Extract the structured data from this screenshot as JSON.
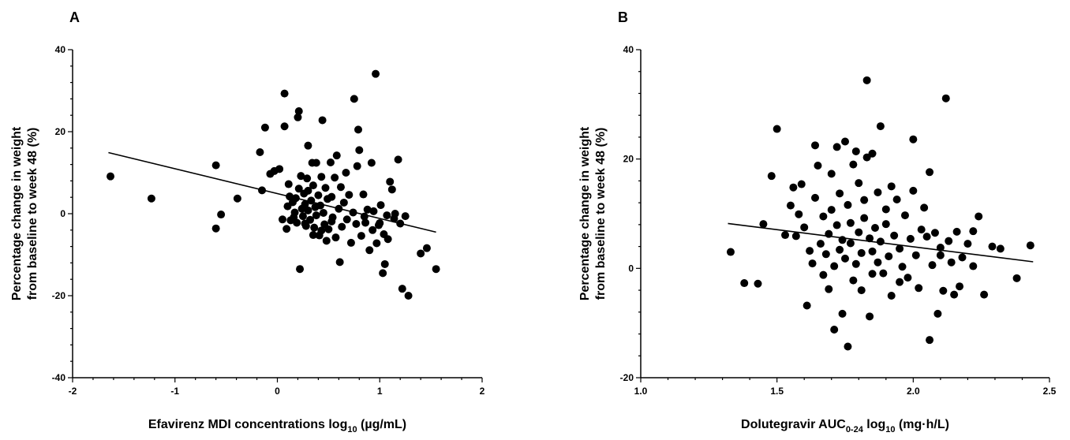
{
  "chart_data": [
    {
      "panel": "A",
      "type": "scatter",
      "xlabel": "Efavirenz MDI concentrations log",
      "xlabel_sub": "10",
      "xlabel_tail": " (µg/mL)",
      "ylabel_line1": "Percentage change in weight",
      "ylabel_line2": "from baseline to week 48 (%)",
      "xlim": [
        -2,
        2
      ],
      "ylim": [
        -40,
        40
      ],
      "xticks": [
        -2,
        -1,
        0,
        1,
        2
      ],
      "xtick_labels": [
        "-2",
        "-1",
        "0",
        "1",
        "2"
      ],
      "yticks": [
        -40,
        -20,
        0,
        20,
        40
      ],
      "ytick_labels": [
        "-40",
        "-20",
        "0",
        "20",
        "40"
      ],
      "trendline": {
        "x": [
          -1.65,
          1.55
        ],
        "y": [
          14.9,
          -4.5
        ]
      },
      "points": [
        [
          -1.63,
          9.1
        ],
        [
          -1.23,
          3.7
        ],
        [
          -0.6,
          11.8
        ],
        [
          -0.6,
          -3.6
        ],
        [
          -0.55,
          -0.2
        ],
        [
          -0.39,
          3.7
        ],
        [
          -0.17,
          15.0
        ],
        [
          -0.15,
          5.7
        ],
        [
          -0.12,
          21.0
        ],
        [
          -0.07,
          9.7
        ],
        [
          -0.03,
          10.4
        ],
        [
          0.02,
          10.9
        ],
        [
          0.05,
          -1.4
        ],
        [
          0.07,
          21.3
        ],
        [
          0.07,
          29.3
        ],
        [
          0.09,
          -3.7
        ],
        [
          0.1,
          1.8
        ],
        [
          0.11,
          7.2
        ],
        [
          0.12,
          4.2
        ],
        [
          0.13,
          -1.6
        ],
        [
          0.15,
          2.8
        ],
        [
          0.17,
          0.3
        ],
        [
          0.18,
          3.8
        ],
        [
          0.19,
          -2.2
        ],
        [
          0.2,
          23.5
        ],
        [
          0.21,
          25.0
        ],
        [
          0.21,
          6.1
        ],
        [
          0.22,
          -13.5
        ],
        [
          0.23,
          9.2
        ],
        [
          0.24,
          1.2
        ],
        [
          0.25,
          -0.6
        ],
        [
          0.26,
          4.9
        ],
        [
          0.27,
          2.3
        ],
        [
          0.28,
          -3.0
        ],
        [
          0.29,
          8.6
        ],
        [
          0.3,
          5.6
        ],
        [
          0.3,
          0.8
        ],
        [
          0.3,
          16.6
        ],
        [
          0.32,
          -1.5
        ],
        [
          0.33,
          3.2
        ],
        [
          0.34,
          12.4
        ],
        [
          0.35,
          6.9
        ],
        [
          0.36,
          -3.4
        ],
        [
          0.37,
          1.6
        ],
        [
          0.38,
          -0.4
        ],
        [
          0.38,
          12.4
        ],
        [
          0.4,
          4.5
        ],
        [
          0.41,
          -5.3
        ],
        [
          0.42,
          2.0
        ],
        [
          0.43,
          9.0
        ],
        [
          0.44,
          22.8
        ],
        [
          0.45,
          0.2
        ],
        [
          0.46,
          -2.6
        ],
        [
          0.47,
          6.3
        ],
        [
          0.48,
          -6.6
        ],
        [
          0.49,
          3.6
        ],
        [
          0.5,
          -3.8
        ],
        [
          0.52,
          12.5
        ],
        [
          0.53,
          4.1
        ],
        [
          0.54,
          -0.9
        ],
        [
          0.56,
          8.8
        ],
        [
          0.57,
          -5.8
        ],
        [
          0.58,
          14.2
        ],
        [
          0.6,
          1.2
        ],
        [
          0.61,
          -11.8
        ],
        [
          0.62,
          6.5
        ],
        [
          0.63,
          -3.2
        ],
        [
          0.65,
          2.7
        ],
        [
          0.67,
          10.0
        ],
        [
          0.68,
          -1.4
        ],
        [
          0.7,
          4.6
        ],
        [
          0.72,
          -7.1
        ],
        [
          0.74,
          0.3
        ],
        [
          0.75,
          28.0
        ],
        [
          0.77,
          -2.5
        ],
        [
          0.78,
          11.6
        ],
        [
          0.79,
          20.5
        ],
        [
          0.8,
          15.5
        ],
        [
          0.82,
          -5.4
        ],
        [
          0.84,
          4.7
        ],
        [
          0.86,
          -2.2
        ],
        [
          0.88,
          1.0
        ],
        [
          0.9,
          -8.9
        ],
        [
          0.92,
          12.4
        ],
        [
          0.93,
          -4.0
        ],
        [
          0.94,
          0.6
        ],
        [
          0.96,
          34.1
        ],
        [
          0.97,
          -7.2
        ],
        [
          0.99,
          -2.8
        ],
        [
          1.01,
          2.1
        ],
        [
          1.03,
          -14.5
        ],
        [
          1.04,
          -5.0
        ],
        [
          1.05,
          -12.3
        ],
        [
          1.07,
          -0.4
        ],
        [
          1.08,
          -6.2
        ],
        [
          1.1,
          7.8
        ],
        [
          1.12,
          5.9
        ],
        [
          1.14,
          -1.2
        ],
        [
          1.15,
          0.0
        ],
        [
          1.18,
          13.2
        ],
        [
          1.2,
          -2.4
        ],
        [
          1.22,
          -18.3
        ],
        [
          1.25,
          -0.6
        ],
        [
          1.28,
          -20.0
        ],
        [
          1.4,
          -9.7
        ],
        [
          1.46,
          -8.4
        ],
        [
          1.55,
          -13.5
        ],
        [
          1.0,
          -2.3
        ],
        [
          0.85,
          -0.7
        ],
        [
          0.53,
          -1.9
        ],
        [
          0.43,
          -4.1
        ],
        [
          0.35,
          -5.2
        ],
        [
          0.27,
          -2.4
        ],
        [
          0.16,
          -0.9
        ]
      ]
    },
    {
      "panel": "B",
      "type": "scatter",
      "xlabel": "Dolutegravir AUC",
      "xlabel_sub": "0-24",
      "xlabel_mid": " log",
      "xlabel_sub2": "10",
      "xlabel_tail": " (mg·h/L)",
      "ylabel_line1": "Percentage change in weight",
      "ylabel_line2": "from baseline to week 48 (%)",
      "xlim": [
        1.0,
        2.5
      ],
      "ylim": [
        -20,
        40
      ],
      "xticks": [
        1.0,
        1.5,
        2.0,
        2.5
      ],
      "xtick_labels": [
        "1.0",
        "1.5",
        "2.0",
        "2.5"
      ],
      "yticks": [
        -20,
        0,
        20,
        40
      ],
      "ytick_labels": [
        "-20",
        "0",
        "20",
        "40"
      ],
      "trendline": {
        "x": [
          1.32,
          2.44
        ],
        "y": [
          8.2,
          1.2
        ]
      },
      "points": [
        [
          1.33,
          3.0
        ],
        [
          1.38,
          -2.7
        ],
        [
          1.43,
          -2.8
        ],
        [
          1.45,
          8.1
        ],
        [
          1.48,
          16.9
        ],
        [
          1.5,
          25.5
        ],
        [
          1.53,
          6.1
        ],
        [
          1.55,
          11.5
        ],
        [
          1.56,
          14.8
        ],
        [
          1.57,
          5.9
        ],
        [
          1.58,
          9.9
        ],
        [
          1.59,
          15.4
        ],
        [
          1.6,
          7.5
        ],
        [
          1.61,
          -6.8
        ],
        [
          1.62,
          3.2
        ],
        [
          1.63,
          0.9
        ],
        [
          1.64,
          22.5
        ],
        [
          1.64,
          12.9
        ],
        [
          1.65,
          18.8
        ],
        [
          1.66,
          4.5
        ],
        [
          1.67,
          -1.2
        ],
        [
          1.67,
          9.5
        ],
        [
          1.68,
          2.6
        ],
        [
          1.69,
          -3.8
        ],
        [
          1.69,
          6.3
        ],
        [
          1.7,
          10.7
        ],
        [
          1.7,
          17.3
        ],
        [
          1.71,
          -11.2
        ],
        [
          1.71,
          0.4
        ],
        [
          1.72,
          7.9
        ],
        [
          1.72,
          22.2
        ],
        [
          1.73,
          13.7
        ],
        [
          1.73,
          3.4
        ],
        [
          1.74,
          -8.3
        ],
        [
          1.74,
          5.2
        ],
        [
          1.75,
          1.8
        ],
        [
          1.75,
          23.2
        ],
        [
          1.76,
          -14.3
        ],
        [
          1.76,
          11.6
        ],
        [
          1.77,
          8.3
        ],
        [
          1.77,
          4.6
        ],
        [
          1.78,
          19.0
        ],
        [
          1.78,
          -2.2
        ],
        [
          1.79,
          21.4
        ],
        [
          1.79,
          0.8
        ],
        [
          1.8,
          6.6
        ],
        [
          1.8,
          15.6
        ],
        [
          1.81,
          2.8
        ],
        [
          1.81,
          -4.0
        ],
        [
          1.82,
          12.5
        ],
        [
          1.82,
          9.2
        ],
        [
          1.83,
          20.3
        ],
        [
          1.83,
          34.4
        ],
        [
          1.84,
          5.5
        ],
        [
          1.84,
          -8.8
        ],
        [
          1.85,
          3.1
        ],
        [
          1.85,
          21.0
        ],
        [
          1.86,
          7.4
        ],
        [
          1.87,
          1.1
        ],
        [
          1.87,
          13.9
        ],
        [
          1.88,
          4.9
        ],
        [
          1.88,
          26.0
        ],
        [
          1.89,
          -0.9
        ],
        [
          1.9,
          10.8
        ],
        [
          1.9,
          8.1
        ],
        [
          1.91,
          2.2
        ],
        [
          1.92,
          -5.0
        ],
        [
          1.92,
          15.0
        ],
        [
          1.93,
          6.0
        ],
        [
          1.94,
          12.6
        ],
        [
          1.95,
          3.6
        ],
        [
          1.96,
          0.3
        ],
        [
          1.97,
          9.7
        ],
        [
          1.98,
          -1.7
        ],
        [
          1.99,
          5.4
        ],
        [
          2.0,
          23.6
        ],
        [
          2.0,
          14.2
        ],
        [
          2.01,
          2.4
        ],
        [
          2.02,
          -3.6
        ],
        [
          2.03,
          7.1
        ],
        [
          2.04,
          11.1
        ],
        [
          2.05,
          5.8
        ],
        [
          2.06,
          17.6
        ],
        [
          2.06,
          -13.1
        ],
        [
          2.07,
          0.6
        ],
        [
          2.08,
          6.5
        ],
        [
          2.09,
          -8.3
        ],
        [
          2.1,
          3.8
        ],
        [
          2.11,
          -4.1
        ],
        [
          2.12,
          31.1
        ],
        [
          2.13,
          5.0
        ],
        [
          2.14,
          1.1
        ],
        [
          2.15,
          -4.8
        ],
        [
          2.16,
          6.7
        ],
        [
          2.17,
          -3.3
        ],
        [
          2.2,
          4.5
        ],
        [
          2.22,
          0.4
        ],
        [
          2.24,
          9.5
        ],
        [
          2.26,
          -4.8
        ],
        [
          2.29,
          4.0
        ],
        [
          2.32,
          3.6
        ],
        [
          2.38,
          -1.8
        ],
        [
          2.43,
          4.2
        ],
        [
          2.22,
          6.8
        ],
        [
          2.18,
          2.0
        ],
        [
          2.1,
          2.4
        ],
        [
          1.95,
          -2.5
        ],
        [
          1.85,
          -1.0
        ]
      ]
    }
  ]
}
